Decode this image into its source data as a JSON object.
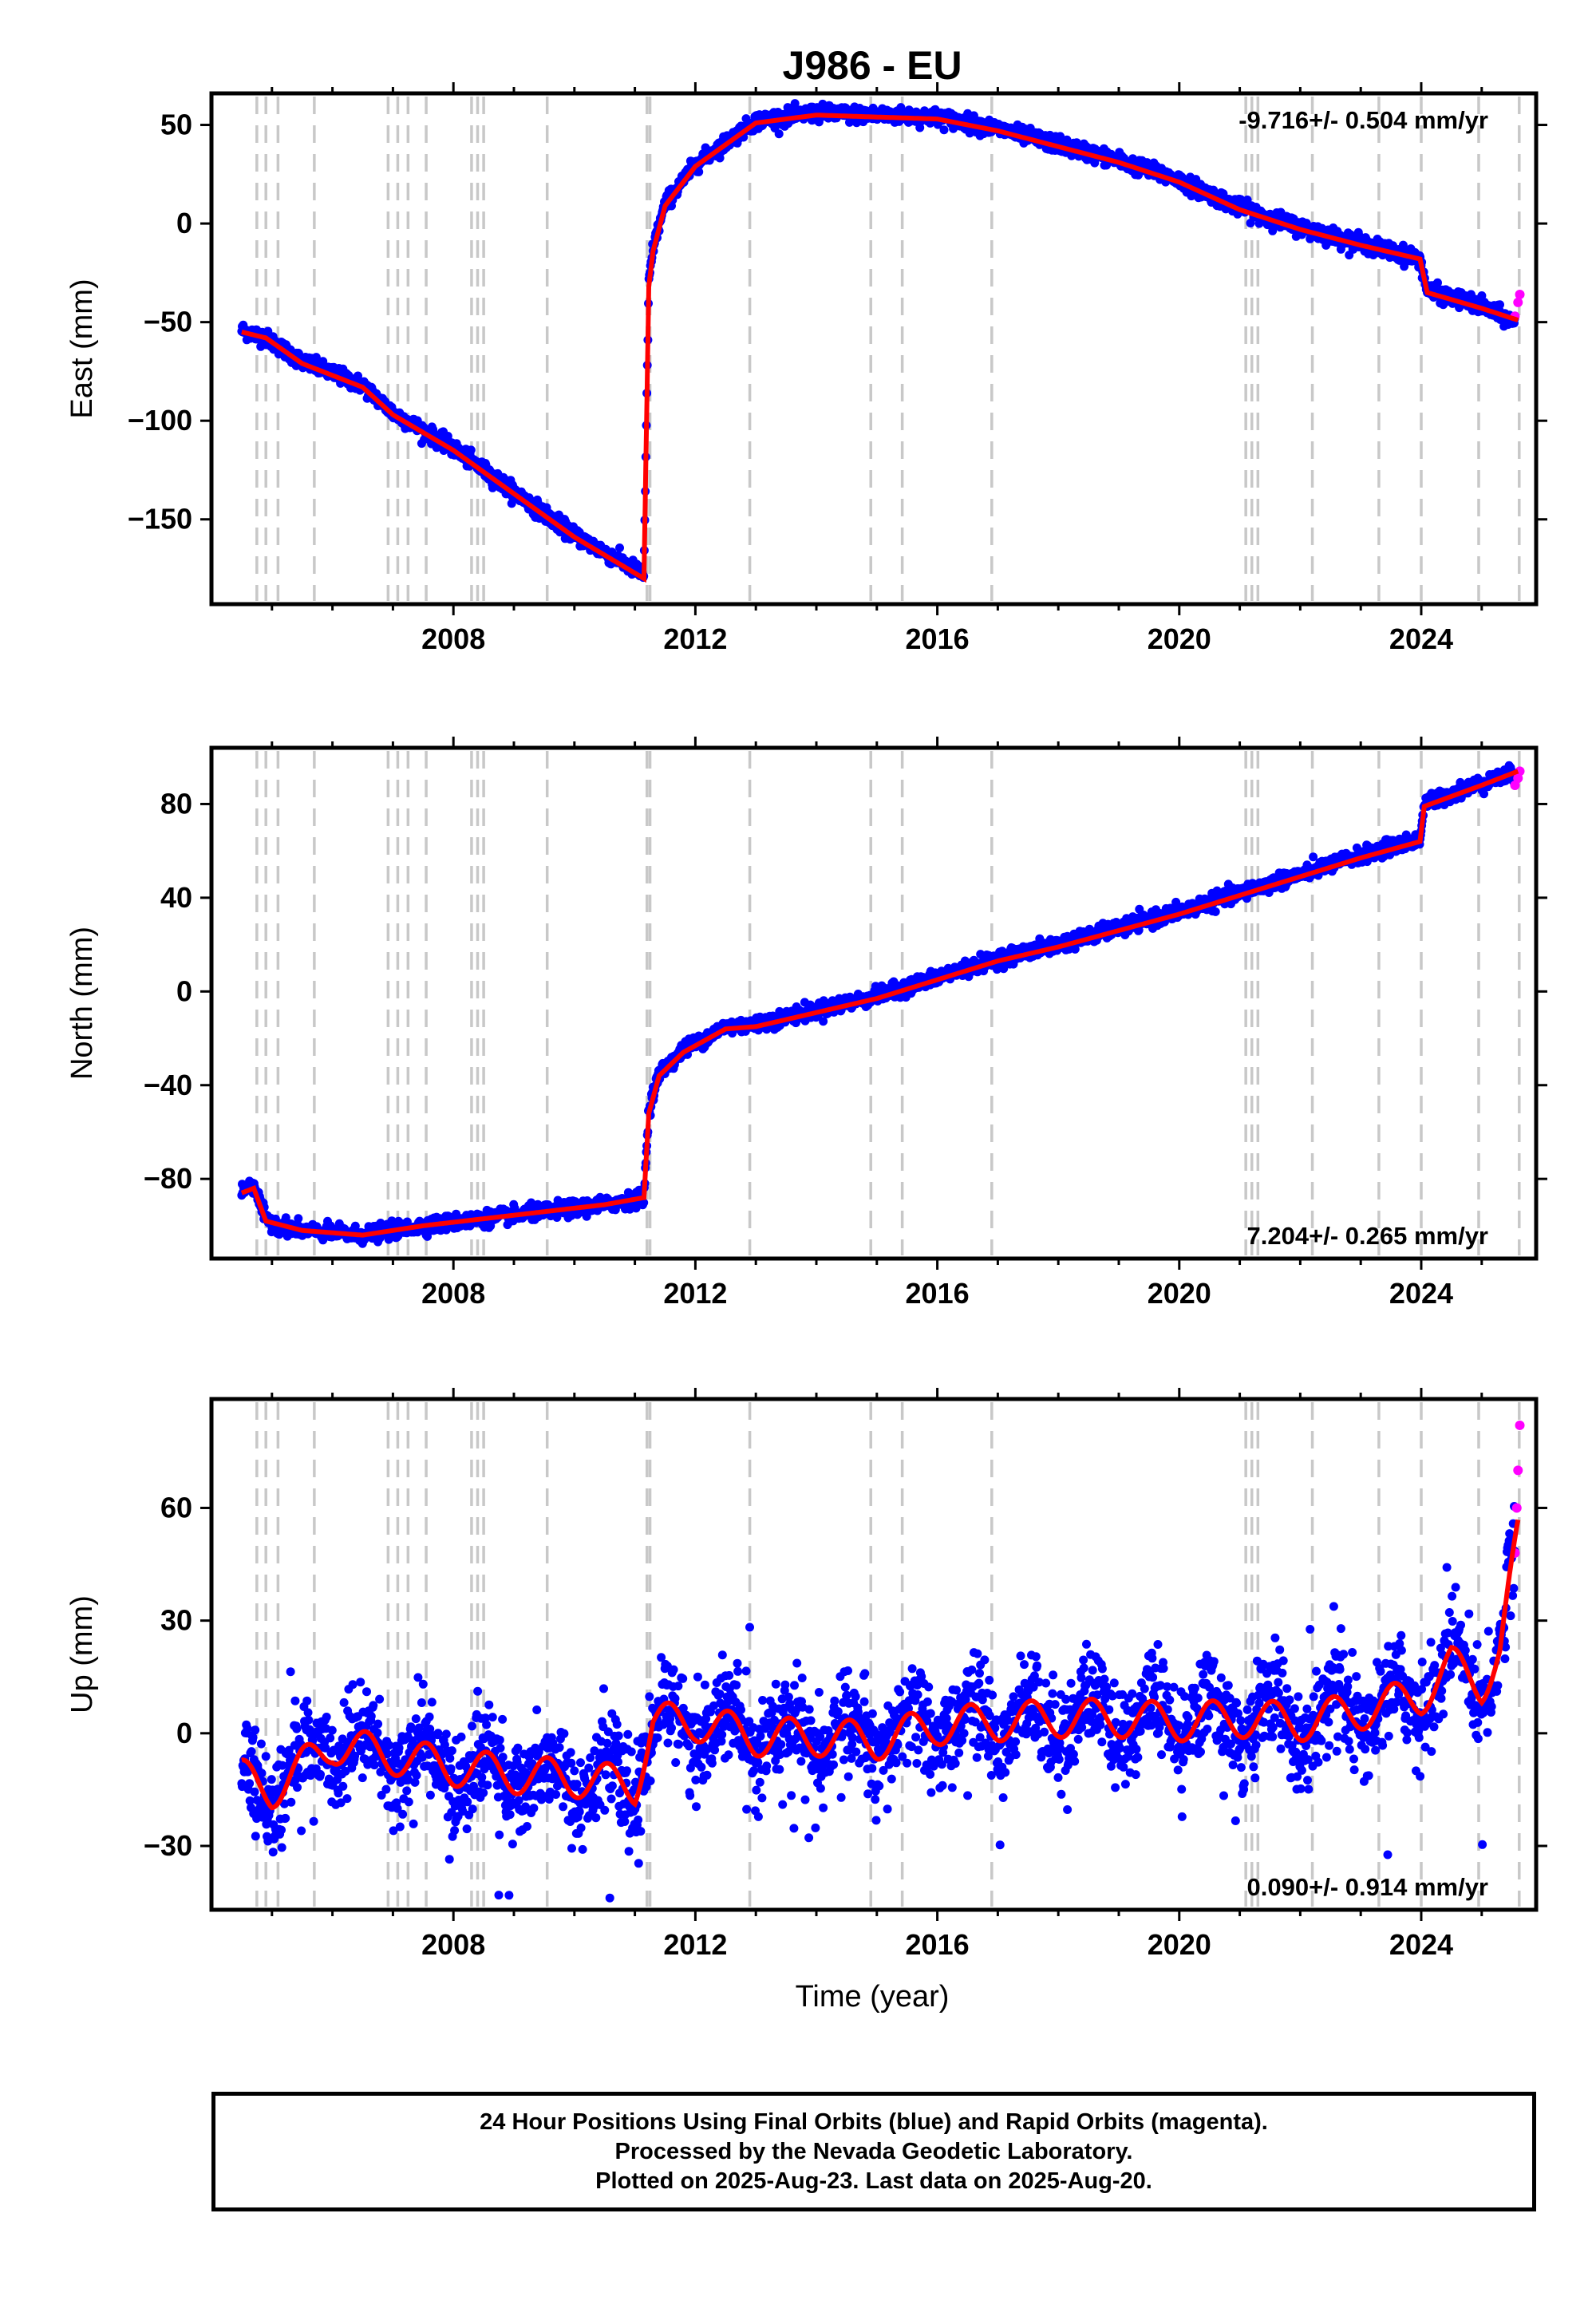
{
  "figure": {
    "title": "J986 - EU",
    "x_axis_label": "Time (year)"
  },
  "colors": {
    "final_orbits": "#0000ff",
    "rapid_orbits": "#ff00ff",
    "model": "#ff0000",
    "event_lines": "#c8c8c8"
  },
  "chart_data": [
    {
      "type": "scatter",
      "component": "East",
      "ylabel": "East (mm)",
      "xlim": [
        2004.0,
        2025.9
      ],
      "ylim": [
        -193,
        66
      ],
      "yticks": [
        50,
        0,
        -50,
        -100,
        -150
      ],
      "ytick_labels": [
        "50",
        "0",
        "−50",
        "−100",
        "−150"
      ],
      "xticks": [
        2008,
        2012,
        2016,
        2020,
        2024
      ],
      "xtick_labels": [
        "2008",
        "2012",
        "2016",
        "2020",
        "2024"
      ],
      "rate_label": "-9.716+/- 0.504 mm/yr",
      "rate_position": "top-right",
      "series": [
        {
          "name": "Final Orbits (blue)",
          "style": "points",
          "data_start": 2004.5,
          "data_end": 2025.55,
          "x": [
            2004.5,
            2004.9,
            2005.5,
            2006.5,
            2007.0,
            2008.0,
            2009.0,
            2010.0,
            2011.15,
            2011.23,
            2011.3,
            2011.5,
            2012.0,
            2013.0,
            2014.0,
            2015.0,
            2016.0,
            2017.0,
            2018.0,
            2019.0,
            2020.0,
            2021.0,
            2022.0,
            2023.0,
            2023.98,
            2024.1,
            2025.0,
            2025.55
          ],
          "y": [
            -54,
            -58,
            -70,
            -82,
            -96,
            -114,
            -136,
            -158,
            -178,
            -30,
            -12,
            10,
            30,
            52,
            56,
            55,
            54,
            48,
            40,
            32,
            22,
            8,
            -2,
            -10,
            -18,
            -34,
            -42,
            -50
          ]
        },
        {
          "name": "Rapid Orbits (magenta)",
          "style": "points",
          "x": [
            2025.55,
            2025.6,
            2025.63
          ],
          "y": [
            -47,
            -40,
            -36
          ]
        },
        {
          "name": "model",
          "style": "line",
          "x": [
            2004.5,
            2004.9,
            2005.5,
            2006.5,
            2007.0,
            2008.0,
            2009.0,
            2010.0,
            2011.15,
            2011.23,
            2011.3,
            2011.5,
            2012.0,
            2013.0,
            2014.0,
            2015.0,
            2016.0,
            2017.0,
            2018.0,
            2019.0,
            2020.0,
            2021.0,
            2022.0,
            2023.0,
            2023.98,
            2024.1,
            2025.0,
            2025.6
          ],
          "y": [
            -55,
            -58,
            -71,
            -83,
            -97,
            -115,
            -137,
            -159,
            -180,
            -32,
            -14,
            9,
            29,
            51,
            55,
            54,
            53,
            47,
            39,
            31,
            21,
            7,
            -3,
            -11,
            -18,
            -35,
            -43,
            -49
          ]
        }
      ]
    },
    {
      "type": "scatter",
      "component": "North",
      "ylabel": "North (mm)",
      "xlim": [
        2004.0,
        2025.9
      ],
      "ylim": [
        -114,
        104
      ],
      "yticks": [
        80,
        40,
        0,
        -40,
        -80
      ],
      "ytick_labels": [
        "80",
        "40",
        "0",
        "−40",
        "−80"
      ],
      "xticks": [
        2008,
        2012,
        2016,
        2020,
        2024
      ],
      "xtick_labels": [
        "2008",
        "2012",
        "2016",
        "2020",
        "2024"
      ],
      "rate_label": "7.204+/- 0.265 mm/yr",
      "rate_position": "bottom-right",
      "series": [
        {
          "name": "Final Orbits (blue)",
          "style": "points",
          "data_start": 2004.5,
          "data_end": 2025.55,
          "x": [
            2004.5,
            2004.7,
            2004.9,
            2005.5,
            2006.5,
            2007.5,
            2008.5,
            2009.5,
            2010.5,
            2011.15,
            2011.23,
            2011.4,
            2011.8,
            2012.5,
            2013.0,
            2014.0,
            2015.0,
            2016.0,
            2017.0,
            2018.0,
            2019.0,
            2020.0,
            2021.0,
            2022.0,
            2023.0,
            2023.98,
            2024.05,
            2025.0,
            2025.55
          ],
          "y": [
            -85,
            -82,
            -98,
            -102,
            -104,
            -100,
            -97,
            -94,
            -91,
            -88,
            -50,
            -35,
            -25,
            -15,
            -14,
            -8,
            -2,
            6,
            14,
            20,
            27,
            34,
            42,
            50,
            58,
            65,
            80,
            89,
            93
          ]
        },
        {
          "name": "Rapid Orbits (magenta)",
          "style": "points",
          "x": [
            2025.55,
            2025.6,
            2025.63
          ],
          "y": [
            88,
            91,
            94
          ]
        },
        {
          "name": "model",
          "style": "line",
          "x": [
            2004.5,
            2004.7,
            2004.9,
            2005.5,
            2006.5,
            2007.5,
            2008.5,
            2009.5,
            2010.5,
            2011.15,
            2011.23,
            2011.4,
            2011.8,
            2012.5,
            2013.0,
            2014.0,
            2015.0,
            2016.0,
            2017.0,
            2018.0,
            2019.0,
            2020.0,
            2021.0,
            2022.0,
            2023.0,
            2023.98,
            2024.05,
            2025.0,
            2025.6
          ],
          "y": [
            -86,
            -84,
            -98,
            -102,
            -104,
            -100,
            -97,
            -94,
            -91,
            -88,
            -52,
            -36,
            -26,
            -16,
            -15,
            -9,
            -3,
            5,
            13,
            19,
            26,
            33,
            41,
            49,
            57,
            64,
            79,
            88,
            94
          ]
        }
      ]
    },
    {
      "type": "scatter",
      "component": "Up",
      "ylabel": "Up (mm)",
      "xlim": [
        2004.0,
        2025.9
      ],
      "ylim": [
        -47,
        89
      ],
      "yticks": [
        60,
        30,
        0,
        -30
      ],
      "ytick_labels": [
        "60",
        "30",
        "0",
        "−30"
      ],
      "xticks": [
        2008,
        2012,
        2016,
        2020,
        2024
      ],
      "xtick_labels": [
        "2008",
        "2012",
        "2016",
        "2020",
        "2024"
      ],
      "rate_label": "0.090+/- 0.914 mm/yr",
      "rate_position": "bottom-right",
      "series": [
        {
          "name": "Final Orbits (blue)",
          "style": "points",
          "data_start": 2004.5,
          "data_end": 2025.55,
          "x": [
            2004.5,
            2005.0,
            2006.0,
            2007.0,
            2008.0,
            2009.0,
            2010.0,
            2011.0,
            2011.3,
            2012.0,
            2013.0,
            2014.0,
            2015.0,
            2016.0,
            2017.0,
            2018.0,
            2019.0,
            2020.0,
            2021.0,
            2022.0,
            2023.0,
            2024.0,
            2024.5,
            2025.0,
            2025.3,
            2025.5
          ],
          "y": [
            -12,
            -15,
            -3,
            -6,
            -9,
            -11,
            -12,
            -14,
            3,
            3,
            -1,
            -1,
            -2,
            2,
            3,
            4,
            4,
            3,
            4,
            3,
            6,
            10,
            18,
            13,
            22,
            45
          ]
        },
        {
          "name": "Rapid Orbits (magenta)",
          "style": "points",
          "x": [
            2025.55,
            2025.58,
            2025.6,
            2025.63
          ],
          "y": [
            48,
            60,
            70,
            82
          ]
        },
        {
          "name": "model",
          "style": "line",
          "x": [
            2004.5,
            2005.0,
            2006.0,
            2007.0,
            2008.0,
            2009.0,
            2010.0,
            2011.0,
            2011.3,
            2012.0,
            2013.0,
            2014.0,
            2015.0,
            2016.0,
            2017.0,
            2018.0,
            2019.0,
            2020.0,
            2021.0,
            2022.0,
            2023.0,
            2024.0,
            2024.5,
            2025.0,
            2025.3,
            2025.6
          ],
          "y": [
            -12,
            -15,
            -3,
            -6,
            -9,
            -11,
            -12,
            -14,
            3,
            3,
            -1,
            -1,
            -2,
            2,
            3,
            4,
            4,
            3,
            4,
            3,
            6,
            10,
            18,
            13,
            22,
            52
          ]
        }
      ]
    }
  ],
  "event_lines": [
    2004.75,
    2004.9,
    2005.1,
    2005.7,
    2006.92,
    2007.08,
    2007.25,
    2007.55,
    2008.3,
    2008.4,
    2008.5,
    2009.55,
    2011.2,
    2011.25,
    2012.9,
    2014.9,
    2015.42,
    2016.9,
    2021.1,
    2021.2,
    2021.3,
    2022.2,
    2023.3,
    2024.0,
    2024.95,
    2025.62
  ],
  "footer": {
    "line1": "24 Hour Positions Using Final Orbits (blue) and Rapid Orbits (magenta).",
    "line2": "Processed by the Nevada Geodetic Laboratory.",
    "line3": "Plotted on 2025-Aug-23. Last data on 2025-Aug-20."
  }
}
